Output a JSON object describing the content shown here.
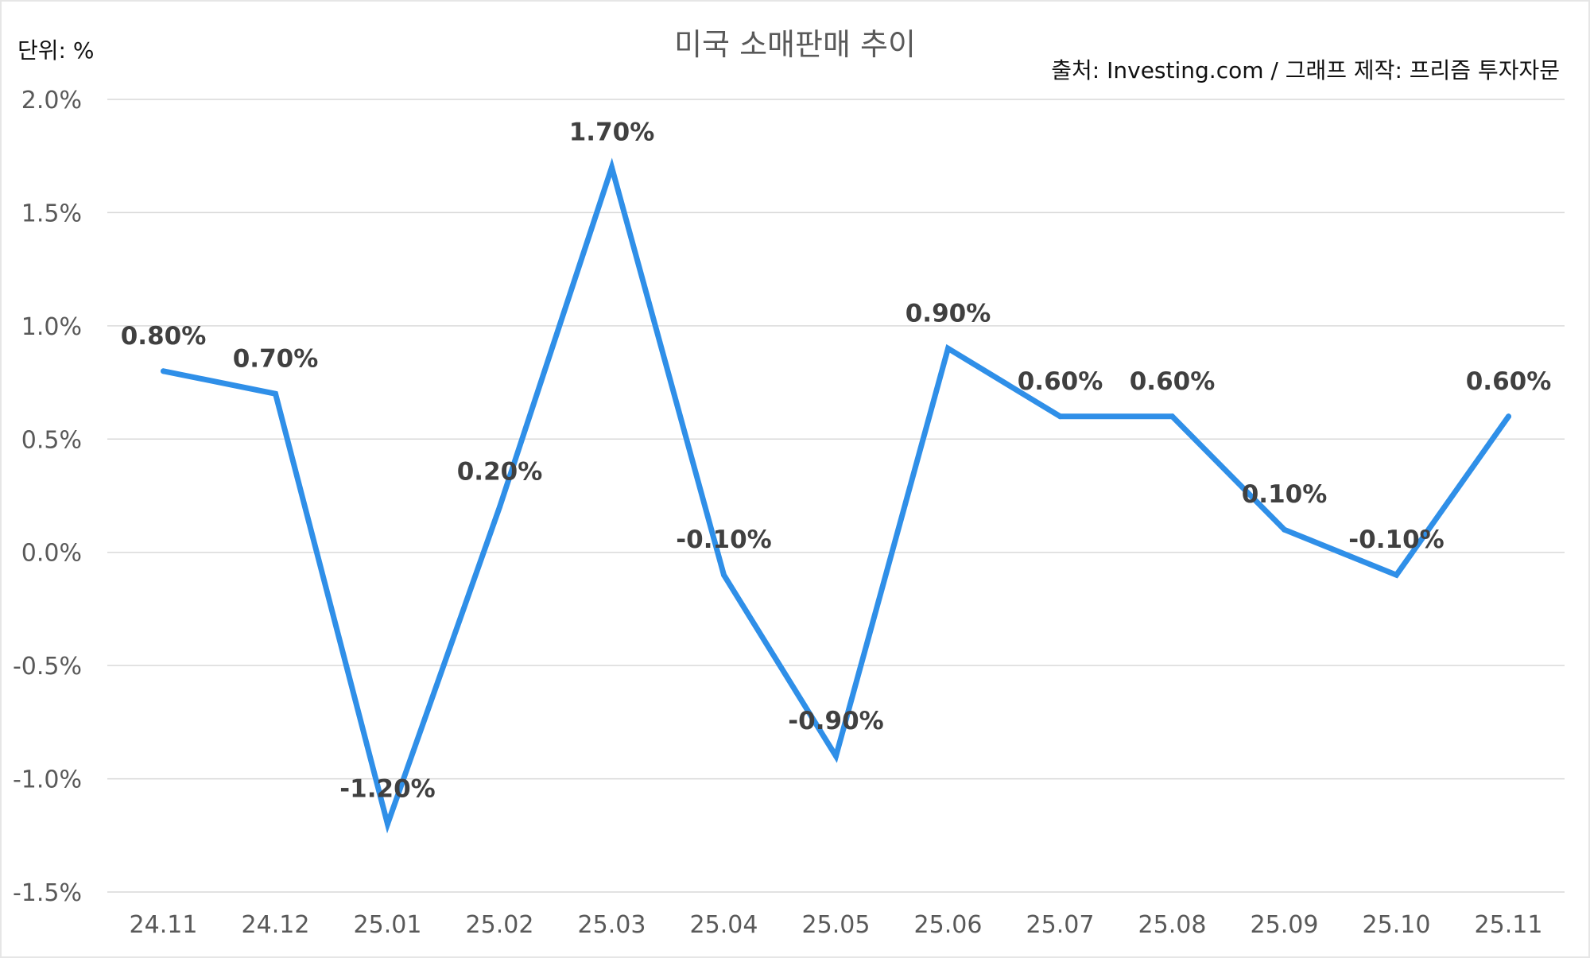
{
  "chart_data": {
    "type": "line",
    "title": "미국 소매판매 추이",
    "unit_label": "단위: %",
    "source_label": "출처: Investing.com / 그래프 제작: 프리즘 투자자문",
    "categories": [
      "24.11",
      "24.12",
      "25.01",
      "25.02",
      "25.03",
      "25.04",
      "25.05",
      "25.06",
      "25.07",
      "25.08",
      "25.09",
      "25.10",
      "25.11"
    ],
    "series": [
      {
        "values": [
          0.8,
          0.7,
          -1.2,
          0.2,
          1.7,
          -0.1,
          -0.9,
          0.9,
          0.6,
          0.6,
          0.1,
          -0.1,
          0.6
        ],
        "labels": [
          "0.80%",
          "0.70%",
          "-1.20%",
          "0.20%",
          "1.70%",
          "-0.10%",
          "-0.90%",
          "0.90%",
          "0.60%",
          "0.60%",
          "0.10%",
          "-0.10%",
          "0.60%"
        ],
        "color": "#2f8fe8"
      }
    ],
    "y_ticks": [
      2.0,
      1.5,
      1.0,
      0.5,
      0.0,
      -0.5,
      -1.0,
      -1.5
    ],
    "y_tick_labels": [
      "2.0%",
      "1.5%",
      "1.0%",
      "0.5%",
      "0.0%",
      "-0.5%",
      "-1.0%",
      "-1.5%"
    ],
    "ylim": [
      -1.5,
      2.0
    ],
    "grid": true,
    "legend": "none"
  }
}
